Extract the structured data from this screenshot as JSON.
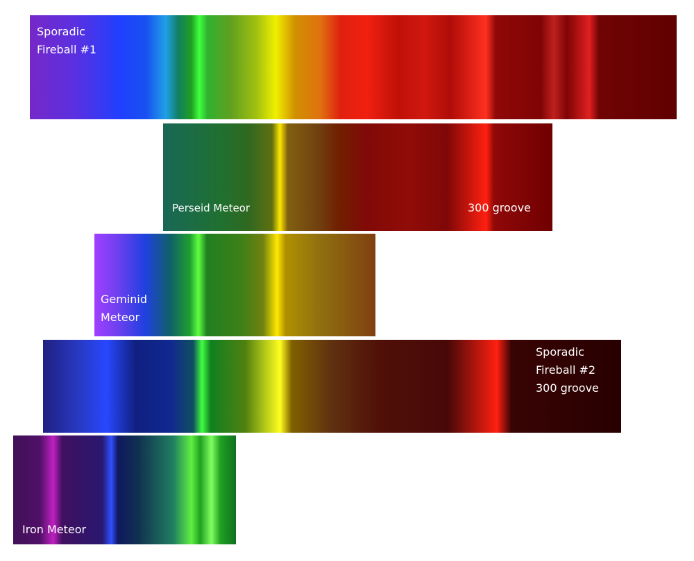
{
  "spectra": [
    {
      "labels": [
        "Sporadic",
        "Fireball #1"
      ]
    },
    {
      "labels": [
        "Perseid Meteor",
        "300 groove"
      ]
    },
    {
      "labels": [
        "Geminid",
        "Meteor"
      ]
    },
    {
      "labels": [
        "Sporadic",
        "Fireball #2",
        "300 groove"
      ]
    },
    {
      "labels": [
        "Iron Meteor"
      ]
    }
  ]
}
